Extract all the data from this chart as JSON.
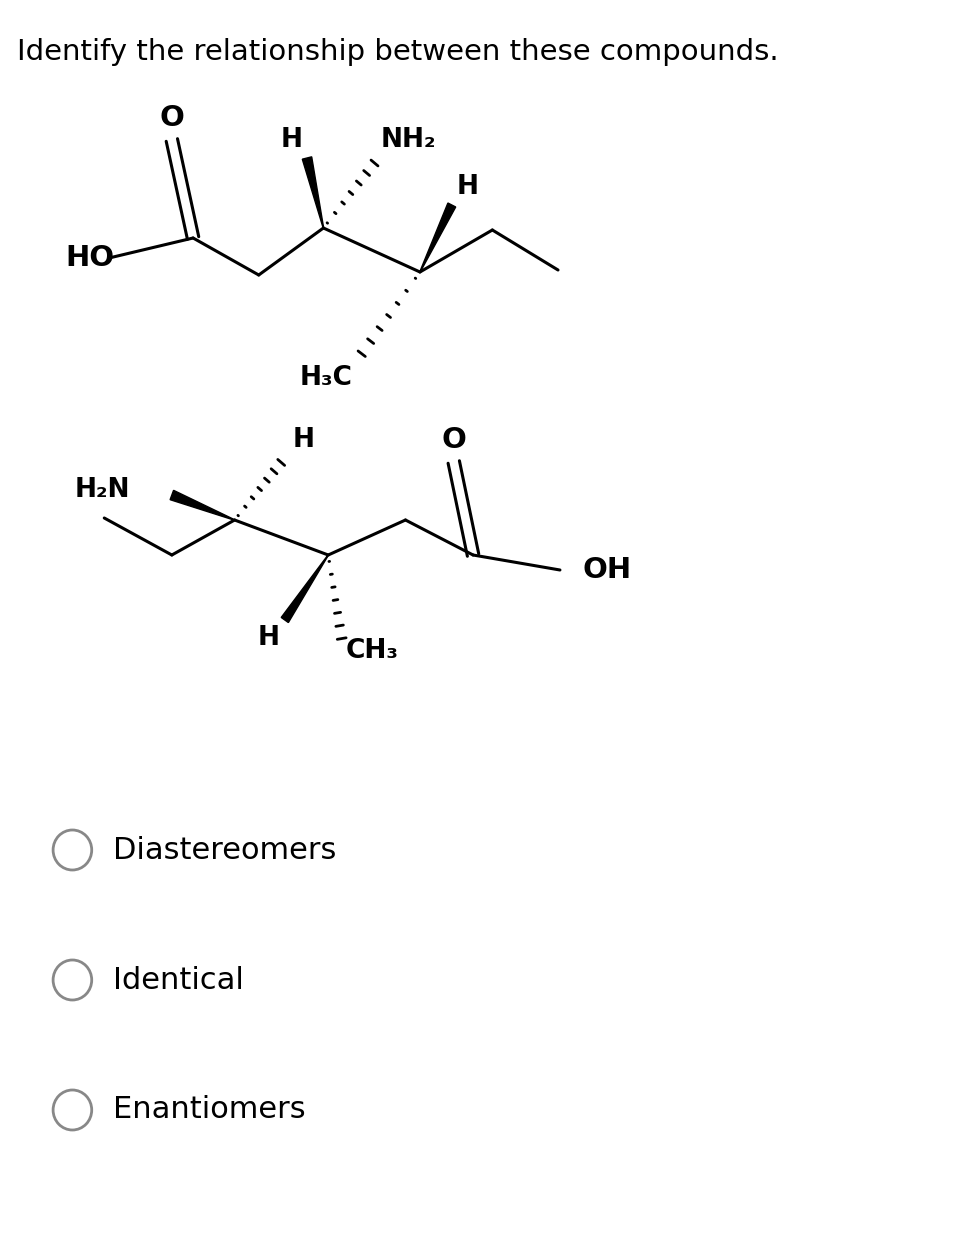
{
  "title": "Identify the relationship between these compounds.",
  "title_fontsize": 21,
  "bg_color": "#ffffff",
  "text_color": "#000000",
  "options": [
    "Diastereomers",
    "Identical",
    "Enantiomers"
  ],
  "option_fontsize": 22
}
